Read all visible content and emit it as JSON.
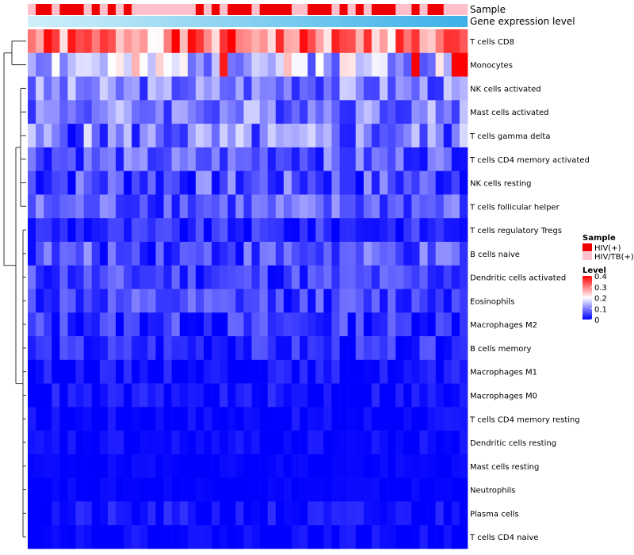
{
  "chart_data": {
    "type": "heatmap",
    "title": "",
    "annotations": {
      "sample_label": "Sample",
      "gene_expression_label": "Gene expression level",
      "sample_groups": [
        {
          "name": "HIV(+)",
          "color": "#ee0000"
        },
        {
          "name": "HIV/TB(+)",
          "color": "#ffc0cb"
        }
      ],
      "sample_pattern": [
        1,
        0,
        0,
        1,
        0,
        0,
        0,
        1,
        0,
        1,
        0,
        1,
        0,
        1,
        1,
        1,
        1,
        1,
        1,
        1,
        1,
        0,
        1,
        0,
        1,
        0,
        0,
        0,
        1,
        0,
        0,
        0,
        0,
        1,
        1,
        0,
        0,
        0,
        1,
        0,
        1,
        0,
        1,
        0,
        0,
        0,
        1,
        1,
        0,
        1,
        0,
        0,
        1,
        1,
        1
      ],
      "gene_expression_gradient": [
        "#d0f0fa",
        "#3cb0e8"
      ]
    },
    "rows": [
      "T cells CD8",
      "Monocytes",
      "NK cells activated",
      "Mast cells activated",
      "T cells gamma delta",
      "T cells CD4 memory activated",
      "NK cells resting",
      "T cells follicular helper",
      "T cells regulatory  Tregs",
      "B cells naive",
      "Dendritic cells activated",
      "Eosinophils",
      "Macrophages M2",
      "B cells memory",
      "Macrophages M1",
      "Macrophages M0",
      "T cells CD4 memory resting",
      "Dendritic cells resting",
      "Mast cells resting",
      "Neutrophils",
      "Plasma cells",
      "T cells CD4 naive"
    ],
    "n_columns": 55,
    "row_profiles": [
      {
        "base": 0.3,
        "amp": 0.1,
        "seed": 1
      },
      {
        "base": 0.16,
        "amp": 0.1,
        "seed": 2,
        "overrides": [
          [
            53,
            0.4
          ],
          [
            54,
            0.4
          ],
          [
            48,
            0.4
          ],
          [
            24,
            0.38
          ]
        ]
      },
      {
        "base": 0.1,
        "amp": 0.07,
        "seed": 3
      },
      {
        "base": 0.1,
        "amp": 0.07,
        "seed": 4
      },
      {
        "base": 0.09,
        "amp": 0.09,
        "seed": 5
      },
      {
        "base": 0.07,
        "amp": 0.06,
        "seed": 6
      },
      {
        "base": 0.06,
        "amp": 0.07,
        "seed": 7
      },
      {
        "base": 0.07,
        "amp": 0.06,
        "seed": 8
      },
      {
        "base": 0.03,
        "amp": 0.04,
        "seed": 9
      },
      {
        "base": 0.06,
        "amp": 0.06,
        "seed": 10
      },
      {
        "base": 0.05,
        "amp": 0.05,
        "seed": 11
      },
      {
        "base": 0.05,
        "amp": 0.05,
        "seed": 12
      },
      {
        "base": 0.04,
        "amp": 0.05,
        "seed": 13
      },
      {
        "base": 0.03,
        "amp": 0.04,
        "seed": 14
      },
      {
        "base": 0.01,
        "amp": 0.03,
        "seed": 15
      },
      {
        "base": 0.01,
        "amp": 0.03,
        "seed": 16
      },
      {
        "base": 0.005,
        "amp": 0.02,
        "seed": 17
      },
      {
        "base": 0.005,
        "amp": 0.02,
        "seed": 18
      },
      {
        "base": 0.003,
        "amp": 0.01,
        "seed": 19
      },
      {
        "base": 0.002,
        "amp": 0.01,
        "seed": 20
      },
      {
        "base": 0.01,
        "amp": 0.03,
        "seed": 21
      },
      {
        "base": 0.005,
        "amp": 0.02,
        "seed": 22
      }
    ],
    "color_scale": {
      "min": 0,
      "mid": 0.2,
      "max": 0.4,
      "low": "#0000ff",
      "mid_color": "#ffffff",
      "high": "#ff0000"
    },
    "legend": {
      "sample_title": "Sample",
      "level_title": "Level",
      "level_ticks": [
        "0.4",
        "0.3",
        "0.2",
        "0.1",
        "0"
      ],
      "level_tick_values": [
        0.4,
        0.3,
        0.2,
        0.1,
        0
      ]
    }
  }
}
